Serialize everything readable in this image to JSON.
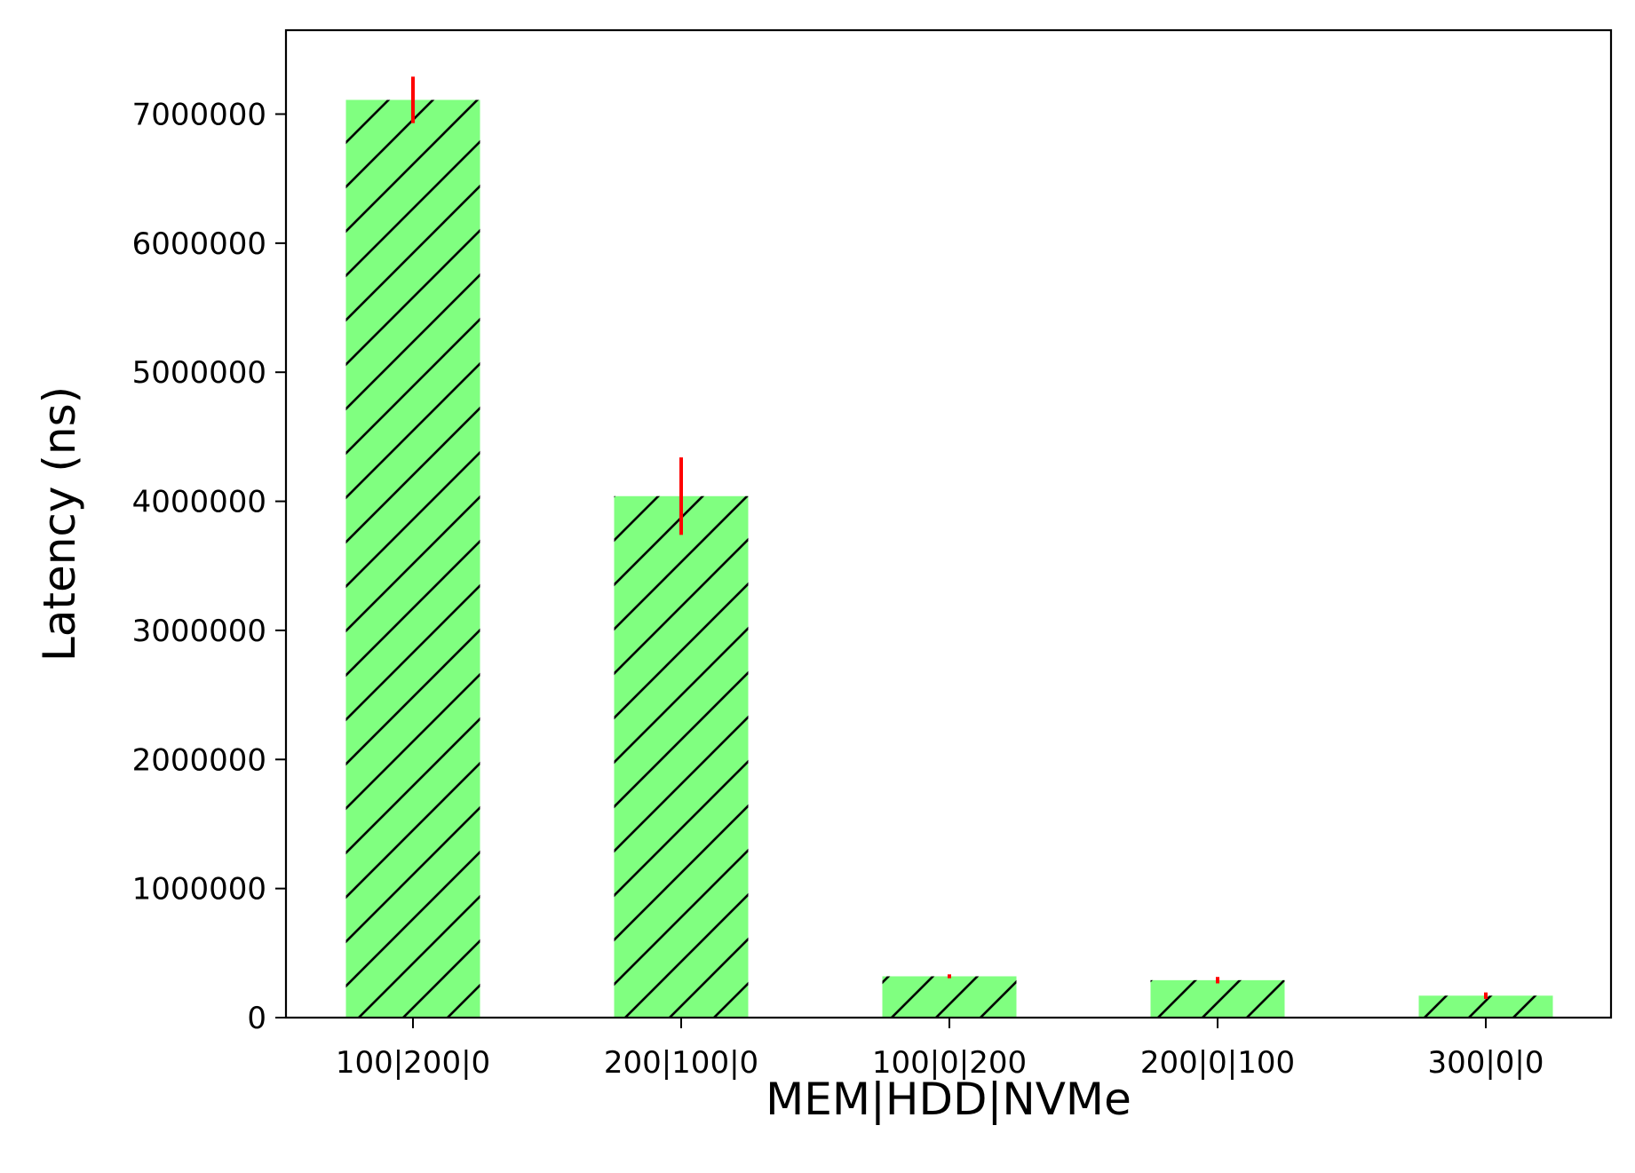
{
  "chart_data": {
    "type": "bar",
    "title": "",
    "xlabel": "MEM|HDD|NVMe",
    "ylabel": "Latency (ns)",
    "categories": [
      "100|200|0",
      "200|100|0",
      "100|0|200",
      "200|0|100",
      "300|0|0"
    ],
    "values": [
      7110000,
      4040000,
      320000,
      290000,
      170000
    ],
    "errors": [
      180000,
      300000,
      15000,
      25000,
      25000
    ],
    "ylim": [
      0,
      7650000
    ],
    "yticks": [
      0,
      1000000,
      2000000,
      3000000,
      4000000,
      5000000,
      6000000,
      7000000
    ],
    "ytick_labels": [
      "0",
      "1000000",
      "2000000",
      "3000000",
      "4000000",
      "5000000",
      "6000000",
      "7000000"
    ],
    "grid": false,
    "legend": "none",
    "colors": {
      "bar_fill": "#80ff80",
      "hatch": "#000000",
      "error_bar": "#ff0000",
      "axes": "#000000"
    }
  }
}
